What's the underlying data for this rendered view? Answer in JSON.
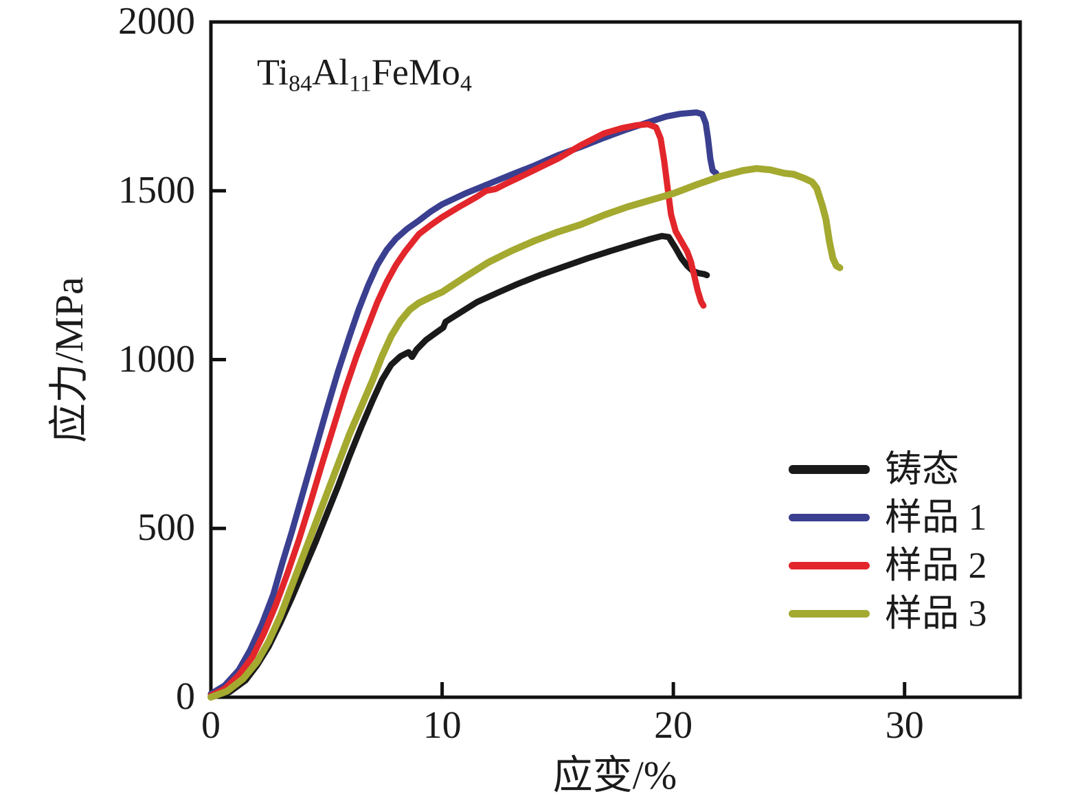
{
  "figure": {
    "annotation": {
      "plain_text": "Ti84Al11FeMo4",
      "segments": [
        {
          "text": "Ti"
        },
        {
          "text": "84",
          "sub": true
        },
        {
          "text": "Al"
        },
        {
          "text": "11",
          "sub": true
        },
        {
          "text": "FeMo"
        },
        {
          "text": "4",
          "sub": true
        }
      ]
    },
    "axis_color": "#111111",
    "background": "#ffffff"
  },
  "chart_data": {
    "type": "line",
    "title": "",
    "xlabel": "应变/%",
    "ylabel": "应力/MPa",
    "xlim": [
      0,
      35
    ],
    "ylim": [
      0,
      2000
    ],
    "xticks": [
      0,
      10,
      20,
      30
    ],
    "yticks": [
      0,
      500,
      1000,
      1500,
      2000
    ],
    "grid": false,
    "frame": "box",
    "legend_position": "inside right",
    "series": [
      {
        "name": "铸态",
        "color": "#1a1a1a",
        "stroke_width": 9,
        "points": [
          [
            0,
            0
          ],
          [
            0.8,
            15
          ],
          [
            1.5,
            50
          ],
          [
            2,
            95
          ],
          [
            2.5,
            150
          ],
          [
            3,
            220
          ],
          [
            3.5,
            295
          ],
          [
            4,
            375
          ],
          [
            4.5,
            455
          ],
          [
            5,
            540
          ],
          [
            5.5,
            625
          ],
          [
            6,
            715
          ],
          [
            6.5,
            800
          ],
          [
            7,
            880
          ],
          [
            7.4,
            940
          ],
          [
            7.8,
            985
          ],
          [
            8.2,
            1010
          ],
          [
            8.55,
            1022
          ],
          [
            8.7,
            1008
          ],
          [
            8.9,
            1030
          ],
          [
            9.3,
            1058
          ],
          [
            9.7,
            1078
          ],
          [
            10.05,
            1095
          ],
          [
            10.15,
            1112
          ],
          [
            10.8,
            1140
          ],
          [
            11.5,
            1170
          ],
          [
            12.4,
            1198
          ],
          [
            13.3,
            1225
          ],
          [
            14.3,
            1252
          ],
          [
            15.3,
            1276
          ],
          [
            16.3,
            1300
          ],
          [
            17.3,
            1322
          ],
          [
            18.3,
            1343
          ],
          [
            19,
            1357
          ],
          [
            19.5,
            1366
          ],
          [
            19.8,
            1363
          ],
          [
            20.1,
            1330
          ],
          [
            20.35,
            1300
          ],
          [
            20.6,
            1278
          ],
          [
            20.85,
            1262
          ],
          [
            21.1,
            1256
          ],
          [
            21.35,
            1253
          ],
          [
            21.45,
            1250
          ]
        ]
      },
      {
        "name": "样品 1",
        "color": "#3a3f90",
        "stroke_width": 9,
        "points": [
          [
            0,
            10
          ],
          [
            0.6,
            35
          ],
          [
            1.2,
            80
          ],
          [
            1.7,
            140
          ],
          [
            2.2,
            215
          ],
          [
            2.7,
            305
          ],
          [
            3.1,
            400
          ],
          [
            3.5,
            490
          ],
          [
            4,
            610
          ],
          [
            4.5,
            730
          ],
          [
            5,
            850
          ],
          [
            5.5,
            965
          ],
          [
            6,
            1070
          ],
          [
            6.4,
            1150
          ],
          [
            6.8,
            1220
          ],
          [
            7.2,
            1280
          ],
          [
            7.6,
            1325
          ],
          [
            8,
            1358
          ],
          [
            8.5,
            1388
          ],
          [
            9,
            1412
          ],
          [
            9.5,
            1438
          ],
          [
            10,
            1460
          ],
          [
            11,
            1492
          ],
          [
            12,
            1520
          ],
          [
            13,
            1548
          ],
          [
            14,
            1575
          ],
          [
            15,
            1605
          ],
          [
            16,
            1630
          ],
          [
            17,
            1657
          ],
          [
            18,
            1682
          ],
          [
            19,
            1705
          ],
          [
            19.7,
            1720
          ],
          [
            20.3,
            1728
          ],
          [
            21,
            1732
          ],
          [
            21.25,
            1727
          ],
          [
            21.4,
            1700
          ],
          [
            21.5,
            1655
          ],
          [
            21.6,
            1595
          ],
          [
            21.7,
            1560
          ],
          [
            21.85,
            1552
          ]
        ]
      },
      {
        "name": "样品 2",
        "color": "#e2262b",
        "stroke_width": 9,
        "points": [
          [
            0,
            5
          ],
          [
            0.6,
            25
          ],
          [
            1.2,
            65
          ],
          [
            1.8,
            120
          ],
          [
            2.3,
            190
          ],
          [
            2.8,
            272
          ],
          [
            3.3,
            365
          ],
          [
            3.8,
            465
          ],
          [
            4.3,
            575
          ],
          [
            4.8,
            690
          ],
          [
            5.3,
            800
          ],
          [
            5.8,
            910
          ],
          [
            6.3,
            1010
          ],
          [
            6.8,
            1100
          ],
          [
            7.2,
            1170
          ],
          [
            7.6,
            1230
          ],
          [
            8,
            1280
          ],
          [
            8.4,
            1320
          ],
          [
            9,
            1372
          ],
          [
            9.5,
            1398
          ],
          [
            10,
            1422
          ],
          [
            10.8,
            1455
          ],
          [
            11.5,
            1482
          ],
          [
            11.9,
            1500
          ],
          [
            12.3,
            1505
          ],
          [
            12.8,
            1522
          ],
          [
            13.5,
            1545
          ],
          [
            14.3,
            1572
          ],
          [
            15,
            1595
          ],
          [
            16,
            1635
          ],
          [
            17,
            1670
          ],
          [
            17.8,
            1686
          ],
          [
            18.4,
            1694
          ],
          [
            18.9,
            1697
          ],
          [
            19.25,
            1688
          ],
          [
            19.45,
            1655
          ],
          [
            19.6,
            1590
          ],
          [
            19.75,
            1510
          ],
          [
            19.9,
            1430
          ],
          [
            20.1,
            1380
          ],
          [
            20.35,
            1350
          ],
          [
            20.6,
            1320
          ],
          [
            20.75,
            1292
          ],
          [
            20.9,
            1250
          ],
          [
            21.05,
            1205
          ],
          [
            21.2,
            1172
          ],
          [
            21.3,
            1160
          ]
        ]
      },
      {
        "name": "样品 3",
        "color": "#a4a930",
        "stroke_width": 10,
        "points": [
          [
            0,
            0
          ],
          [
            0.7,
            18
          ],
          [
            1.4,
            55
          ],
          [
            2,
            105
          ],
          [
            2.5,
            165
          ],
          [
            3,
            240
          ],
          [
            3.5,
            330
          ],
          [
            4,
            420
          ],
          [
            4.5,
            510
          ],
          [
            5,
            600
          ],
          [
            5.5,
            690
          ],
          [
            6,
            780
          ],
          [
            6.5,
            860
          ],
          [
            7,
            940
          ],
          [
            7.4,
            1010
          ],
          [
            7.8,
            1070
          ],
          [
            8.2,
            1115
          ],
          [
            8.6,
            1148
          ],
          [
            9,
            1168
          ],
          [
            9.5,
            1185
          ],
          [
            10,
            1200
          ],
          [
            11,
            1245
          ],
          [
            12,
            1288
          ],
          [
            13,
            1322
          ],
          [
            14,
            1352
          ],
          [
            15,
            1378
          ],
          [
            16,
            1400
          ],
          [
            17,
            1428
          ],
          [
            18,
            1452
          ],
          [
            19,
            1472
          ],
          [
            20,
            1492
          ],
          [
            21,
            1518
          ],
          [
            22,
            1542
          ],
          [
            23,
            1560
          ],
          [
            23.6,
            1566
          ],
          [
            24.2,
            1562
          ],
          [
            24.8,
            1552
          ],
          [
            25.2,
            1549
          ],
          [
            25.7,
            1536
          ],
          [
            26,
            1526
          ],
          [
            26.2,
            1508
          ],
          [
            26.45,
            1455
          ],
          [
            26.6,
            1415
          ],
          [
            26.75,
            1350
          ],
          [
            26.9,
            1300
          ],
          [
            27.05,
            1278
          ],
          [
            27.2,
            1272
          ]
        ]
      }
    ]
  }
}
